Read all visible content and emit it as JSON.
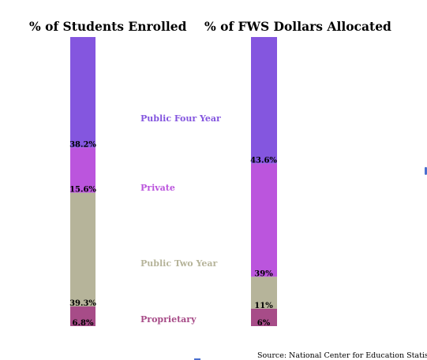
{
  "chart_data": [
    {
      "type": "bar",
      "stacked": true,
      "title": "% of Students Enrolled",
      "categories": [
        "Public Four Year",
        "Private",
        "Public Two Year",
        "Proprietary"
      ],
      "values": [
        38.2,
        15.6,
        39.3,
        6.8
      ],
      "labels": [
        "38.2%",
        "15.6%",
        "39.3%",
        "6.8%"
      ]
    },
    {
      "type": "bar",
      "stacked": true,
      "title": "% of FWS Dollars Allocated",
      "categories": [
        "Public Four Year",
        "Private",
        "Public Two Year",
        "Proprietary"
      ],
      "values": [
        43.6,
        39,
        11,
        6
      ],
      "labels": [
        "43.6%",
        "39%",
        "11%",
        "6%"
      ]
    }
  ],
  "colors": {
    "Public Four Year": "#8456df",
    "Private": "#bb55dd",
    "Public Two Year": "#b6b49a",
    "Proprietary": "#a74c88"
  },
  "source": "Source: National Center for Education Statistics"
}
